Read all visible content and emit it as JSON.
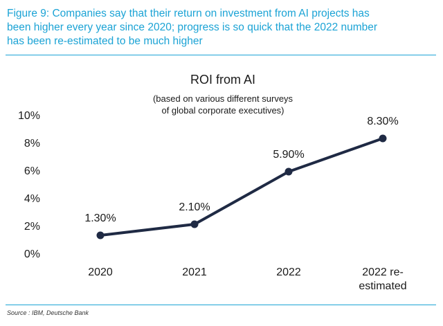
{
  "figure": {
    "title_lines": [
      "Figure 9: Companies say that their return on investment from AI projects has",
      "been higher every year since 2020; progress is so quick that the 2022 number",
      "has been re-estimated to be much higher"
    ],
    "source": "Source : IBM, Deutsche Bank"
  },
  "colors": {
    "accent": "#1ba3d5",
    "line": "#1f2a44"
  },
  "chart_data": {
    "type": "line",
    "title": "ROI from AI",
    "subtitle_lines": [
      "(based on various different surveys",
      "of global corporate executives)"
    ],
    "categories": [
      [
        "2020"
      ],
      [
        "2021"
      ],
      [
        "2022"
      ],
      [
        "2022 re-",
        "estimated"
      ]
    ],
    "values": [
      1.3,
      2.1,
      5.9,
      8.3
    ],
    "data_labels": [
      "1.30%",
      "2.10%",
      "5.90%",
      "8.30%"
    ],
    "yticks": [
      "0%",
      "2%",
      "4%",
      "6%",
      "8%",
      "10%"
    ],
    "ylim": [
      0,
      10
    ],
    "grid": false,
    "legend": false
  }
}
